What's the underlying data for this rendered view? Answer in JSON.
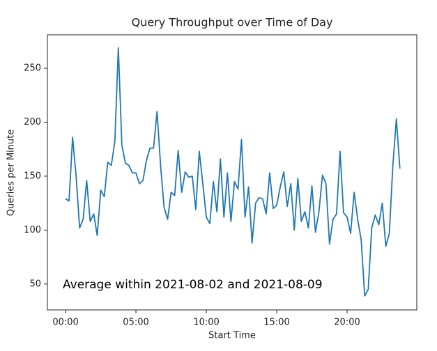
{
  "chart_data": {
    "type": "line",
    "title": "Query Throughput over Time of Day",
    "xlabel": "Start Time",
    "ylabel": "Queries per Minute",
    "annotation": "Average within 2021-08-02 and 2021-08-09",
    "x": [
      0,
      0.25,
      0.5,
      0.75,
      1,
      1.25,
      1.5,
      1.75,
      2,
      2.25,
      2.5,
      2.75,
      3,
      3.25,
      3.5,
      3.75,
      4,
      4.25,
      4.5,
      4.75,
      5,
      5.25,
      5.5,
      5.75,
      6,
      6.25,
      6.5,
      6.75,
      7,
      7.25,
      7.5,
      7.75,
      8,
      8.25,
      8.5,
      8.75,
      9,
      9.25,
      9.5,
      9.75,
      10,
      10.25,
      10.5,
      10.75,
      11,
      11.25,
      11.5,
      11.75,
      12,
      12.25,
      12.5,
      12.75,
      13,
      13.25,
      13.5,
      13.75,
      14,
      14.25,
      14.5,
      14.75,
      15,
      15.25,
      15.5,
      15.75,
      16,
      16.25,
      16.5,
      16.75,
      17,
      17.25,
      17.5,
      17.75,
      18,
      18.25,
      18.5,
      18.75,
      19,
      19.25,
      19.5,
      19.75,
      20,
      20.25,
      20.5,
      20.75,
      21,
      21.25,
      21.5,
      21.75,
      22,
      22.25,
      22.5,
      22.75,
      23,
      23.25,
      23.5,
      23.75
    ],
    "series": [
      {
        "name": "Queries per Minute",
        "color": "#1f77b4",
        "values": [
          129,
          127,
          186,
          150,
          102,
          110,
          146,
          108,
          115,
          95,
          137,
          131,
          163,
          160,
          182,
          269,
          179,
          162,
          160,
          153,
          153,
          143,
          146,
          165,
          176,
          176,
          210,
          160,
          121,
          110,
          135,
          132,
          174,
          135,
          154,
          149,
          150,
          119,
          173,
          143,
          112,
          106,
          145,
          117,
          166,
          112,
          153,
          108,
          145,
          138,
          184,
          112,
          140,
          88,
          125,
          130,
          129,
          115,
          153,
          120,
          123,
          140,
          154,
          122,
          143,
          100,
          148,
          108,
          117,
          102,
          141,
          98,
          117,
          151,
          143,
          87,
          110,
          115,
          173,
          116,
          112,
          97,
          135,
          110,
          91,
          39,
          45,
          102,
          114,
          105,
          125,
          85,
          97,
          160,
          203,
          157
        ]
      }
    ],
    "xlim": [
      -1.29,
      24.95
    ],
    "ylim": [
      26,
      281
    ],
    "xticks": [
      {
        "value": 0,
        "label": "00:00"
      },
      {
        "value": 5,
        "label": "05:00"
      },
      {
        "value": 10,
        "label": "10:00"
      },
      {
        "value": 15,
        "label": "15:00"
      },
      {
        "value": 20,
        "label": "20:00"
      }
    ],
    "yticks": [
      50,
      100,
      150,
      200,
      250
    ]
  }
}
